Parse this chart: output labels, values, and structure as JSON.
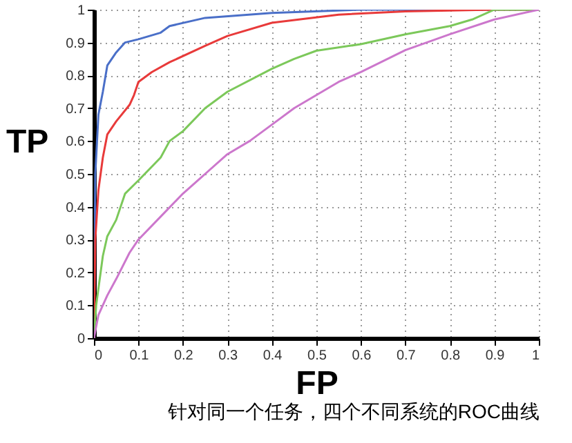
{
  "chart_data": {
    "type": "line",
    "xlabel": "FP",
    "ylabel": "TP",
    "annotations": [
      "针对同一个任务，四个不同系统的ROC曲线"
    ],
    "xlim": [
      0,
      1
    ],
    "ylim": [
      0,
      1
    ],
    "xticks": [
      0,
      0.1,
      0.2,
      0.3,
      0.4,
      0.5,
      0.6,
      0.7,
      0.8,
      0.9,
      1
    ],
    "yticks": [
      0,
      0.1,
      0.2,
      0.3,
      0.4,
      0.5,
      0.6,
      0.7,
      0.8,
      0.9,
      1
    ],
    "grid": true,
    "series": [
      {
        "color": "#4a6fc8",
        "x": [
          0,
          0.003,
          0.01,
          0.02,
          0.03,
          0.05,
          0.07,
          0.1,
          0.15,
          0.17,
          0.25,
          0.4,
          0.6,
          1
        ],
        "values": [
          0,
          0.5,
          0.68,
          0.75,
          0.83,
          0.87,
          0.9,
          0.91,
          0.93,
          0.95,
          0.975,
          0.99,
          1,
          1
        ]
      },
      {
        "color": "#e83a3a",
        "x": [
          0,
          0.003,
          0.01,
          0.02,
          0.03,
          0.05,
          0.08,
          0.09,
          0.1,
          0.13,
          0.17,
          0.25,
          0.3,
          0.4,
          0.55,
          0.7,
          0.9,
          1
        ],
        "values": [
          0,
          0.3,
          0.45,
          0.55,
          0.62,
          0.66,
          0.71,
          0.74,
          0.78,
          0.81,
          0.84,
          0.89,
          0.92,
          0.96,
          0.985,
          0.995,
          1,
          1
        ]
      },
      {
        "color": "#7cc85a",
        "x": [
          0,
          0.005,
          0.02,
          0.03,
          0.05,
          0.07,
          0.1,
          0.15,
          0.17,
          0.2,
          0.25,
          0.3,
          0.4,
          0.45,
          0.5,
          0.6,
          0.7,
          0.8,
          0.85,
          0.9,
          1
        ],
        "values": [
          0,
          0.1,
          0.25,
          0.31,
          0.36,
          0.44,
          0.48,
          0.55,
          0.6,
          0.63,
          0.7,
          0.75,
          0.82,
          0.85,
          0.875,
          0.895,
          0.925,
          0.95,
          0.97,
          1,
          1
        ]
      },
      {
        "color": "#cc77cc",
        "x": [
          0,
          0.01,
          0.03,
          0.05,
          0.08,
          0.1,
          0.15,
          0.2,
          0.25,
          0.3,
          0.35,
          0.4,
          0.45,
          0.5,
          0.55,
          0.6,
          0.7,
          0.8,
          0.9,
          1
        ],
        "values": [
          0,
          0.07,
          0.13,
          0.18,
          0.26,
          0.3,
          0.37,
          0.44,
          0.5,
          0.56,
          0.6,
          0.65,
          0.7,
          0.74,
          0.78,
          0.81,
          0.877,
          0.925,
          0.97,
          1
        ]
      }
    ]
  }
}
